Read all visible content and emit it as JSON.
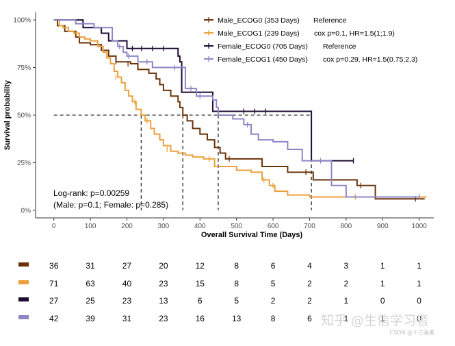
{
  "chart_data": {
    "type": "line",
    "subtype": "kaplan-meier",
    "xlabel": "Overall Survival Time (Days)",
    "ylabel": "Survival probability",
    "xlim": [
      -50,
      1040
    ],
    "ylim": [
      -0.04,
      1.04
    ],
    "x_ticks": [
      0,
      100,
      200,
      300,
      400,
      500,
      600,
      700,
      800,
      900,
      1000
    ],
    "y_ticks": [
      {
        "value": 0,
        "label": "0%"
      },
      {
        "value": 0.25,
        "label": "25%"
      },
      {
        "value": 0.5,
        "label": "50%"
      },
      {
        "value": 0.75,
        "label": "75%"
      },
      {
        "value": 1,
        "label": "100%"
      }
    ],
    "grid": false,
    "legend_position": "top-right",
    "median_line_y": 0.5,
    "medians": [
      239,
      353,
      450,
      705
    ],
    "series": [
      {
        "name": "Male_ECOG0 (353 Days)",
        "note": "Reference",
        "color": "#6b3208",
        "steps": [
          [
            0,
            1
          ],
          [
            10,
            0.97
          ],
          [
            30,
            0.94
          ],
          [
            60,
            0.91
          ],
          [
            70,
            0.88
          ],
          [
            100,
            0.87
          ],
          [
            130,
            0.84
          ],
          [
            150,
            0.81
          ],
          [
            170,
            0.78
          ],
          [
            210,
            0.77
          ],
          [
            230,
            0.74
          ],
          [
            260,
            0.72
          ],
          [
            280,
            0.69
          ],
          [
            290,
            0.66
          ],
          [
            300,
            0.63
          ],
          [
            320,
            0.6
          ],
          [
            340,
            0.57
          ],
          [
            345,
            0.54
          ],
          [
            353,
            0.5
          ],
          [
            365,
            0.47
          ],
          [
            380,
            0.43
          ],
          [
            400,
            0.4
          ],
          [
            420,
            0.37
          ],
          [
            440,
            0.33
          ],
          [
            455,
            0.3
          ],
          [
            470,
            0.27
          ],
          [
            520,
            0.27
          ],
          [
            570,
            0.23
          ],
          [
            630,
            0.23
          ],
          [
            640,
            0.2
          ],
          [
            700,
            0.2
          ],
          [
            710,
            0.16
          ],
          [
            800,
            0.16
          ],
          [
            830,
            0.13
          ],
          [
            880,
            0.1
          ],
          [
            880,
            0.06
          ],
          [
            1015,
            0.06
          ]
        ],
        "censored": [
          [
            170,
            0.78
          ],
          [
            203,
            0.77
          ],
          [
            480,
            0.27
          ],
          [
            690,
            0.2
          ],
          [
            840,
            0.13
          ],
          [
            990,
            0.06
          ]
        ]
      },
      {
        "name": "Male_ECOG1 (239 Days)",
        "note": "cox p=0.1, HR=1.5(1;1.9)",
        "color": "#eba03b",
        "steps": [
          [
            0,
            1
          ],
          [
            15,
            0.97
          ],
          [
            25,
            0.96
          ],
          [
            40,
            0.94
          ],
          [
            55,
            0.93
          ],
          [
            70,
            0.91
          ],
          [
            85,
            0.9
          ],
          [
            100,
            0.89
          ],
          [
            120,
            0.86
          ],
          [
            135,
            0.83
          ],
          [
            145,
            0.8
          ],
          [
            155,
            0.77
          ],
          [
            165,
            0.73
          ],
          [
            175,
            0.7
          ],
          [
            185,
            0.67
          ],
          [
            195,
            0.63
          ],
          [
            205,
            0.6
          ],
          [
            215,
            0.57
          ],
          [
            225,
            0.53
          ],
          [
            239,
            0.5
          ],
          [
            250,
            0.47
          ],
          [
            265,
            0.43
          ],
          [
            275,
            0.4
          ],
          [
            290,
            0.37
          ],
          [
            300,
            0.34
          ],
          [
            320,
            0.31
          ],
          [
            340,
            0.3
          ],
          [
            360,
            0.29
          ],
          [
            380,
            0.28
          ],
          [
            410,
            0.27
          ],
          [
            440,
            0.23
          ],
          [
            500,
            0.21
          ],
          [
            540,
            0.2
          ],
          [
            570,
            0.16
          ],
          [
            590,
            0.13
          ],
          [
            605,
            0.1
          ],
          [
            640,
            0.08
          ],
          [
            700,
            0.07
          ],
          [
            1020,
            0.07
          ]
        ],
        "censored": [
          [
            170,
            0.7
          ],
          [
            222,
            0.57
          ],
          [
            255,
            0.47
          ],
          [
            310,
            0.32
          ],
          [
            425,
            0.27
          ],
          [
            575,
            0.16
          ],
          [
            600,
            0.13
          ],
          [
            825,
            0.07
          ],
          [
            1000,
            0.07
          ]
        ]
      },
      {
        "name": "Female_ECOG0 (705 Days)",
        "note": "Reference",
        "color": "#1c0b33",
        "steps": [
          [
            0,
            1
          ],
          [
            80,
            0.96
          ],
          [
            130,
            0.93
          ],
          [
            150,
            0.89
          ],
          [
            200,
            0.85
          ],
          [
            340,
            0.81
          ],
          [
            345,
            0.78
          ],
          [
            350,
            0.74
          ],
          [
            350,
            0.62
          ],
          [
            430,
            0.62
          ],
          [
            435,
            0.59
          ],
          [
            435,
            0.52
          ],
          [
            705,
            0.52
          ],
          [
            705,
            0.26
          ],
          [
            820,
            0.26
          ]
        ],
        "censored": [
          [
            215,
            0.85
          ],
          [
            240,
            0.85
          ],
          [
            270,
            0.85
          ],
          [
            300,
            0.85
          ],
          [
            390,
            0.62
          ],
          [
            520,
            0.52
          ],
          [
            550,
            0.52
          ],
          [
            580,
            0.52
          ],
          [
            820,
            0.26
          ]
        ]
      },
      {
        "name": "Female_ECOG1 (450 Days)",
        "note": "cox p=0.29, HR=1.5(0.75;2.3)",
        "color": "#8d85c5",
        "steps": [
          [
            0,
            1
          ],
          [
            60,
            0.98
          ],
          [
            110,
            0.96
          ],
          [
            160,
            0.89
          ],
          [
            175,
            0.86
          ],
          [
            190,
            0.83
          ],
          [
            200,
            0.81
          ],
          [
            230,
            0.78
          ],
          [
            270,
            0.75
          ],
          [
            340,
            0.75
          ],
          [
            360,
            0.64
          ],
          [
            390,
            0.6
          ],
          [
            435,
            0.58
          ],
          [
            445,
            0.54
          ],
          [
            450,
            0.5
          ],
          [
            490,
            0.48
          ],
          [
            520,
            0.45
          ],
          [
            540,
            0.4
          ],
          [
            560,
            0.37
          ],
          [
            600,
            0.36
          ],
          [
            640,
            0.32
          ],
          [
            680,
            0.26
          ],
          [
            740,
            0.26
          ],
          [
            760,
            0.13
          ],
          [
            790,
            0.13
          ],
          [
            800,
            0.07
          ],
          [
            1000,
            0.07
          ]
        ],
        "censored": [
          [
            180,
            0.86
          ],
          [
            205,
            0.81
          ],
          [
            255,
            0.78
          ],
          [
            330,
            0.75
          ],
          [
            375,
            0.64
          ],
          [
            400,
            0.6
          ],
          [
            530,
            0.45
          ],
          [
            730,
            0.26
          ],
          [
            1000,
            0.07
          ]
        ]
      }
    ],
    "annotations": [
      "Log-rank: p=0.00259",
      "(Male: p=0.1; Female: p=0.285)"
    ],
    "risk_table": [
      {
        "series": "Male_ECOG0",
        "values": [
          "36",
          "31",
          "27",
          "20",
          "12",
          "8",
          "6",
          "4",
          "3",
          "1",
          "1"
        ]
      },
      {
        "series": "Male_ECOG1",
        "values": [
          "71",
          "63",
          "40",
          "23",
          "15",
          "8",
          "5",
          "2",
          "2",
          "1",
          "1"
        ]
      },
      {
        "series": "Female_ECOG0",
        "values": [
          "27",
          "25",
          "23",
          "13",
          "6",
          "5",
          "2",
          "2",
          "1",
          "0",
          "0"
        ]
      },
      {
        "series": "Female_ECOG1",
        "values": [
          "42",
          "39",
          "31",
          "23",
          "16",
          "13",
          "8",
          "6",
          "1",
          "1",
          "0"
        ]
      }
    ]
  },
  "watermark": "知乎 @生信学习者",
  "watermark_small": "CSDN @十三画者"
}
